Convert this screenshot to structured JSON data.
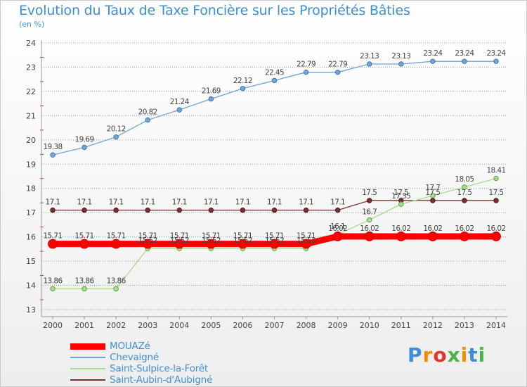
{
  "title": "Evolution du Taux de Taxe Foncière sur les Propriétés Bâties",
  "subtitle": "(en %)",
  "logo": {
    "text": "Proxiti",
    "colors": [
      "#3d8fd4",
      "#f28c00",
      "#e5322d",
      "#4cb34a",
      "#f28c00",
      "#3d8fd4",
      "#4cb34a"
    ]
  },
  "chart_data": {
    "type": "line",
    "title": "Evolution du Taux de Taxe Foncière sur les Propriétés Bâties",
    "ylabel": "(en %)",
    "xlabel": "",
    "x": [
      2000,
      2001,
      2002,
      2003,
      2004,
      2005,
      2006,
      2007,
      2008,
      2009,
      2010,
      2011,
      2012,
      2013,
      2014
    ],
    "ylim": [
      13,
      24
    ],
    "yticks": [
      13,
      14,
      15,
      16,
      17,
      18,
      19,
      20,
      21,
      22,
      23,
      24
    ],
    "grid": "horizontal dotted",
    "legend_position": "bottom-left",
    "series": [
      {
        "name": "MOUAZé",
        "color": "#ff0000",
        "values": [
          15.71,
          15.71,
          15.71,
          15.71,
          15.71,
          15.71,
          15.71,
          15.71,
          15.71,
          16.02,
          16.02,
          16.02,
          16.02,
          16.02,
          16.02
        ],
        "labels": [
          "15.71",
          "15.71",
          "15.71",
          "15.71",
          "15.71",
          "15.71",
          "15.71",
          "15.71",
          "15.71",
          "16.02",
          "16.02",
          "16.02",
          "16.02",
          "16.02",
          "16.02"
        ]
      },
      {
        "name": "Chevaigné",
        "color": "#6fa4d6",
        "values": [
          19.38,
          19.69,
          20.12,
          20.82,
          21.24,
          21.69,
          22.12,
          22.45,
          22.79,
          22.79,
          23.13,
          23.13,
          23.24,
          23.24,
          23.24
        ],
        "labels": [
          "19.38",
          "19.69",
          "20.12",
          "20.82",
          "21.24",
          "21.69",
          "22.12",
          "22.45",
          "22.79",
          "22.79",
          "23.13",
          "23.13",
          "23.24",
          "23.24",
          "23.24"
        ]
      },
      {
        "name": "Saint-Sulpice-la-Forêt",
        "color": "#a8dc8c",
        "values": [
          13.86,
          13.86,
          13.86,
          15.52,
          15.52,
          15.52,
          15.52,
          15.52,
          15.52,
          16.1,
          16.7,
          17.35,
          17.7,
          18.05,
          18.41
        ],
        "labels": [
          "13.86",
          "13.86",
          "13.86",
          "15.52",
          "15.52",
          "15.52",
          "15.52",
          "15.52",
          "15.52",
          "16.1",
          "16.7",
          "17.35",
          "17.7",
          "18.05",
          "18.41"
        ]
      },
      {
        "name": "Saint-Aubin-d'Aubigné",
        "color": "#7a2f2f",
        "values": [
          17.1,
          17.1,
          17.1,
          17.1,
          17.1,
          17.1,
          17.1,
          17.1,
          17.1,
          17.1,
          17.5,
          17.5,
          17.5,
          17.5,
          17.5
        ],
        "labels": [
          "17.1",
          "17.1",
          "17.1",
          "17.1",
          "17.1",
          "17.1",
          "17.1",
          "17.1",
          "17.1",
          "17.1",
          "17.5",
          "17.5",
          "17.5",
          "17.5",
          "17.5"
        ]
      }
    ]
  }
}
